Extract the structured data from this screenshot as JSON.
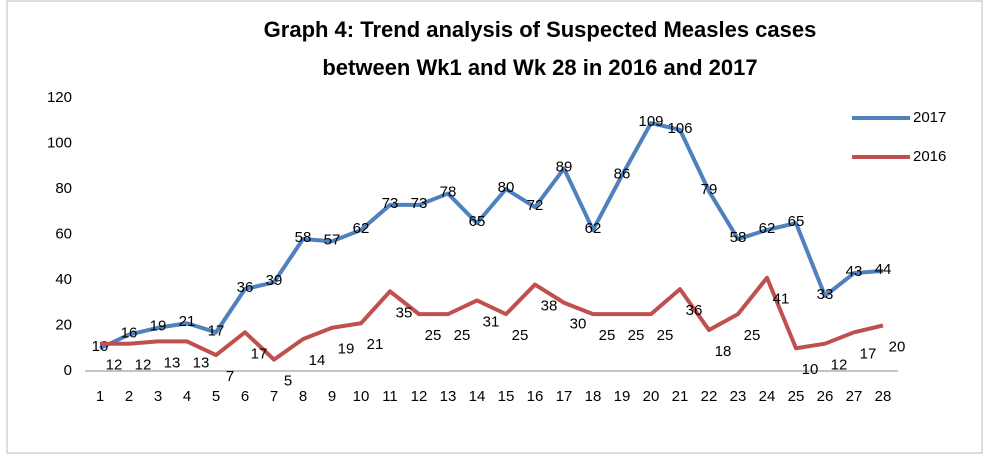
{
  "chart_data": {
    "type": "line",
    "title": [
      "Graph 4: Trend analysis of Suspected Measles cases",
      "between Wk1 and Wk 28 in 2016 and 2017"
    ],
    "categories": [
      "1",
      "2",
      "3",
      "4",
      "5",
      "6",
      "7",
      "8",
      "9",
      "10",
      "11",
      "12",
      "13",
      "14",
      "15",
      "16",
      "17",
      "18",
      "19",
      "20",
      "21",
      "22",
      "23",
      "24",
      "25",
      "26",
      "27",
      "28"
    ],
    "series": [
      {
        "name": "2017",
        "color": "#4f81bd",
        "values": [
          10,
          16,
          19,
          21,
          17,
          36,
          39,
          58,
          57,
          62,
          73,
          73,
          78,
          65,
          80,
          72,
          89,
          62,
          86,
          109,
          106,
          79,
          58,
          62,
          65,
          33,
          43,
          44
        ]
      },
      {
        "name": "2016",
        "color": "#c0504d",
        "values": [
          12,
          12,
          13,
          13,
          7,
          17,
          5,
          14,
          19,
          21,
          35,
          25,
          25,
          31,
          25,
          38,
          30,
          25,
          25,
          25,
          36,
          18,
          25,
          41,
          10,
          12,
          17,
          20
        ]
      }
    ],
    "ylim": [
      0,
      120
    ],
    "yticks": [
      0,
      20,
      40,
      60,
      80,
      100,
      120
    ],
    "grid": false,
    "legend": "right"
  }
}
